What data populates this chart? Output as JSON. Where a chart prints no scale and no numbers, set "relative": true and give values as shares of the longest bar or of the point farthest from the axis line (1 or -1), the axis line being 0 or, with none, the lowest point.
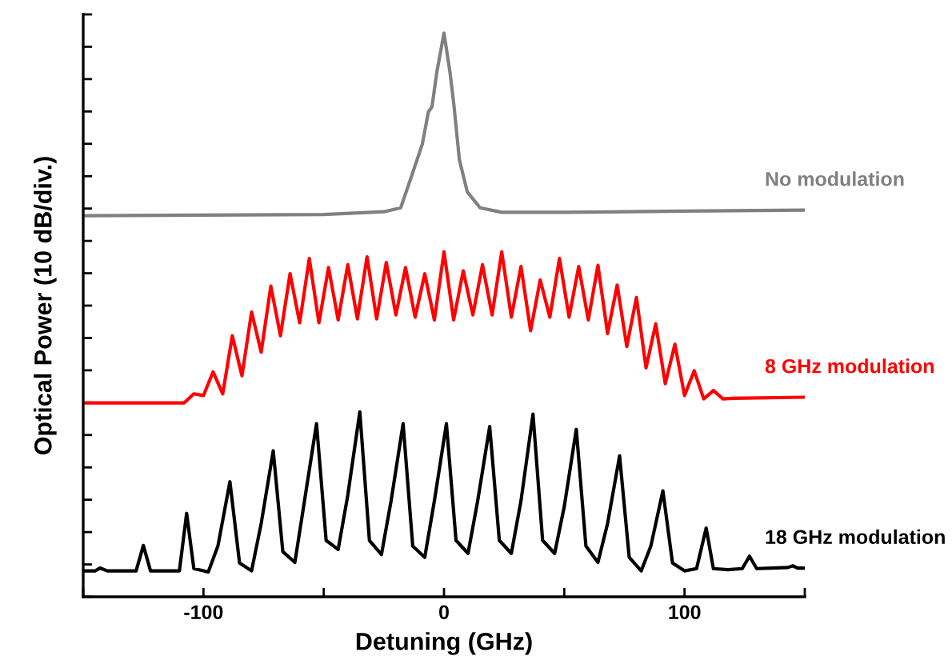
{
  "chart_data": {
    "type": "line",
    "relative": true,
    "xlabel": "Detuning (GHz)",
    "ylabel": "Optical Power (10 dB/div.)",
    "xlim": [
      -150,
      150
    ],
    "xticks": [
      {
        "value": -150,
        "label": null
      },
      -100,
      {
        "value": -50,
        "label": null
      },
      0,
      {
        "value": 50,
        "label": null
      },
      100,
      {
        "value": 150,
        "label": null
      }
    ],
    "grid": false,
    "legend": false,
    "marker": "none",
    "line_style": "solid",
    "tick_labels": "x",
    "series": [
      {
        "name": "No modulation",
        "color": "#808080",
        "x": [
          -150,
          -100,
          -50,
          -25,
          -18,
          -13.5,
          -9,
          -6.5,
          -5,
          -3,
          0,
          2.5,
          4.2,
          6.4,
          9.7,
          15,
          24,
          50,
          100,
          150
        ],
        "values": [
          0.676,
          0.677,
          0.678,
          0.683,
          0.69,
          0.746,
          0.803,
          0.86,
          0.869,
          0.93,
          1.0,
          0.93,
          0.869,
          0.775,
          0.718,
          0.69,
          0.682,
          0.682,
          0.684,
          0.686
        ]
      },
      {
        "name": "8 GHz modulation",
        "color": "#ff0000",
        "x": [
          -150,
          -108,
          -104,
          -100,
          -96,
          -92,
          -88,
          -84,
          -80,
          -76,
          -72,
          -68,
          -64,
          -60,
          -56,
          -52,
          -48,
          -44,
          -40,
          -36,
          -32,
          -28,
          -24,
          -20,
          -16,
          -12,
          -8,
          -4,
          0,
          4,
          8,
          12,
          16,
          20,
          24,
          28,
          32,
          36,
          40,
          44,
          48,
          52,
          56,
          60,
          64,
          68,
          72,
          76,
          80,
          84,
          88,
          92,
          96,
          100,
          104,
          108,
          112,
          116,
          120,
          150
        ],
        "values": [
          0.344,
          0.344,
          0.36,
          0.357,
          0.399,
          0.36,
          0.463,
          0.392,
          0.505,
          0.434,
          0.551,
          0.463,
          0.573,
          0.486,
          0.6,
          0.486,
          0.584,
          0.491,
          0.589,
          0.493,
          0.603,
          0.493,
          0.593,
          0.5,
          0.584,
          0.496,
          0.573,
          0.491,
          0.612,
          0.491,
          0.578,
          0.5,
          0.589,
          0.5,
          0.612,
          0.496,
          0.586,
          0.472,
          0.562,
          0.496,
          0.6,
          0.496,
          0.586,
          0.491,
          0.588,
          0.467,
          0.553,
          0.444,
          0.531,
          0.406,
          0.484,
          0.378,
          0.448,
          0.357,
          0.401,
          0.351,
          0.366,
          0.351,
          0.352,
          0.354
        ]
      },
      {
        "name": "18 GHz modulation",
        "color": "#000000",
        "x": [
          -150,
          -145,
          -143,
          -140,
          -128,
          -125,
          -122,
          -110,
          -107,
          -104,
          -98,
          -94,
          -89,
          -85,
          -80,
          -76,
          -71,
          -67,
          -62,
          -58,
          -53,
          -49,
          -44,
          -40,
          -35,
          -31,
          -26,
          -22,
          -17,
          -13,
          -8,
          -4,
          1,
          5,
          10,
          14,
          19,
          23,
          28,
          32,
          37,
          41,
          46,
          50,
          55,
          59,
          64,
          68,
          73,
          77,
          82,
          86,
          91,
          95,
          100,
          105,
          109,
          112,
          118,
          124,
          127,
          130,
          136,
          143,
          145,
          147,
          150
        ],
        "values": [
          0.046,
          0.046,
          0.051,
          0.046,
          0.046,
          0.091,
          0.046,
          0.046,
          0.148,
          0.05,
          0.044,
          0.09,
          0.204,
          0.06,
          0.046,
          0.13,
          0.259,
          0.08,
          0.061,
          0.17,
          0.307,
          0.1,
          0.084,
          0.18,
          0.328,
          0.1,
          0.075,
          0.17,
          0.307,
          0.09,
          0.07,
          0.17,
          0.307,
          0.1,
          0.077,
          0.17,
          0.302,
          0.1,
          0.077,
          0.17,
          0.324,
          0.1,
          0.077,
          0.16,
          0.297,
          0.09,
          0.061,
          0.13,
          0.25,
          0.07,
          0.046,
          0.09,
          0.188,
          0.06,
          0.046,
          0.05,
          0.122,
          0.05,
          0.048,
          0.05,
          0.072,
          0.05,
          0.051,
          0.052,
          0.055,
          0.051,
          0.051
        ]
      }
    ]
  }
}
